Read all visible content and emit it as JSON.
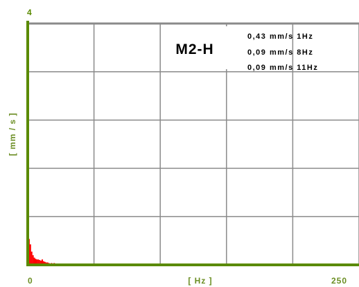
{
  "chart_data": {
    "type": "bar",
    "title": "M2-H",
    "xlabel": "[ Hz ]",
    "ylabel": "[ mm / s ]",
    "xlim": [
      0,
      250
    ],
    "ylim": [
      0,
      4
    ],
    "x_tick_labels": [
      "0",
      "250"
    ],
    "y_tick_labels": [
      "4"
    ],
    "grid": true,
    "colors": {
      "axis": "#5a8a00",
      "label": "#6b8e23",
      "grid": "#8a8a8a",
      "bars": "#ff0000",
      "text": "#000000"
    },
    "peak_annotations": [
      "0,43 mm/s 1Hz",
      "0,09 mm/s 8Hz",
      "0,09 mm/s 11Hz"
    ],
    "x": [
      1,
      2,
      3,
      4,
      5,
      6,
      7,
      8,
      9,
      10,
      11,
      12,
      13,
      14,
      15,
      16,
      18,
      20,
      22,
      25,
      30,
      40,
      60,
      80,
      100,
      150,
      200,
      250
    ],
    "values": [
      0.43,
      0.34,
      0.22,
      0.16,
      0.12,
      0.1,
      0.09,
      0.09,
      0.08,
      0.07,
      0.09,
      0.06,
      0.05,
      0.04,
      0.04,
      0.03,
      0.03,
      0.03,
      0.02,
      0.02,
      0.02,
      0.02,
      0.02,
      0.02,
      0.02,
      0.02,
      0.02,
      0.02
    ]
  }
}
